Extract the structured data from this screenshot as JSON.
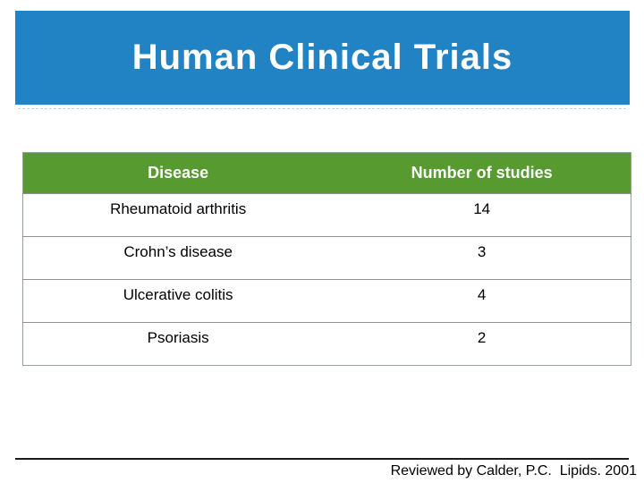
{
  "slide": {
    "title": "Human Clinical Trials",
    "footer_citation": "Reviewed by Calder, P.C.  Lipids. 2001"
  },
  "table": {
    "headers": [
      "Disease",
      "Number of studies"
    ],
    "rows": [
      [
        "Rheumatoid arthritis",
        "14"
      ],
      [
        "Crohn’s disease",
        "3"
      ],
      [
        "Ulcerative colitis",
        "4"
      ],
      [
        "Psoriasis",
        "2"
      ]
    ]
  },
  "chart_data": {
    "type": "table",
    "title": "Human Clinical Trials",
    "columns": [
      "Disease",
      "Number of studies"
    ],
    "rows": [
      {
        "disease": "Rheumatoid arthritis",
        "number_of_studies": 14
      },
      {
        "disease": "Crohn’s disease",
        "number_of_studies": 3
      },
      {
        "disease": "Ulcerative colitis",
        "number_of_studies": 4
      },
      {
        "disease": "Psoriasis",
        "number_of_studies": 2
      }
    ]
  },
  "colors": {
    "banner_blue": "#2182C4",
    "header_green": "#579A30",
    "title_text": "#FFFFFF",
    "body_text": "#000000",
    "table_border": "#97A097",
    "footer_line": "#1B1B1B"
  }
}
